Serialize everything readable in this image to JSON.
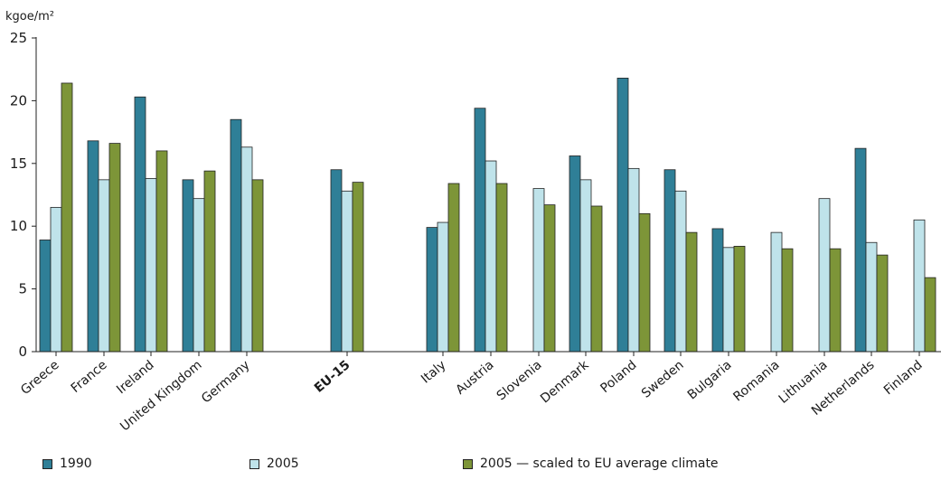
{
  "chart_data": {
    "type": "bar",
    "ylabel": "kgoe/m²",
    "ylim": [
      0,
      25
    ],
    "yticks": [
      0,
      5,
      10,
      15,
      20,
      25
    ],
    "grid": false,
    "legend_position": "bottom",
    "categories": [
      "Greece",
      "France",
      "Ireland",
      "United Kingdom",
      "Germany",
      "EU-15",
      "Italy",
      "Austria",
      "Slovenia",
      "Denmark",
      "Poland",
      "Sweden",
      "Bulgaria",
      "Romania",
      "Lithuania",
      "Netherlands",
      "Finland"
    ],
    "bold_categories": [
      "EU-15"
    ],
    "series": [
      {
        "name": "1990",
        "color": "#2f7f97",
        "values": [
          8.9,
          16.8,
          20.3,
          13.7,
          18.5,
          14.5,
          9.9,
          19.4,
          null,
          15.6,
          21.8,
          14.5,
          9.8,
          null,
          null,
          16.2,
          null
        ]
      },
      {
        "name": "2005",
        "color": "#bfe3ea",
        "values": [
          11.5,
          13.7,
          13.8,
          12.2,
          16.3,
          12.8,
          10.3,
          15.2,
          13.0,
          13.7,
          14.6,
          12.8,
          8.3,
          9.5,
          12.2,
          8.7,
          10.5
        ]
      },
      {
        "name": "2005 — scaled to EU average climate",
        "color": "#7d9538",
        "values": [
          21.4,
          16.6,
          16.0,
          14.4,
          13.7,
          13.5,
          13.4,
          13.4,
          11.7,
          11.6,
          11.0,
          9.5,
          8.4,
          8.2,
          8.2,
          7.7,
          5.9
        ]
      }
    ]
  }
}
